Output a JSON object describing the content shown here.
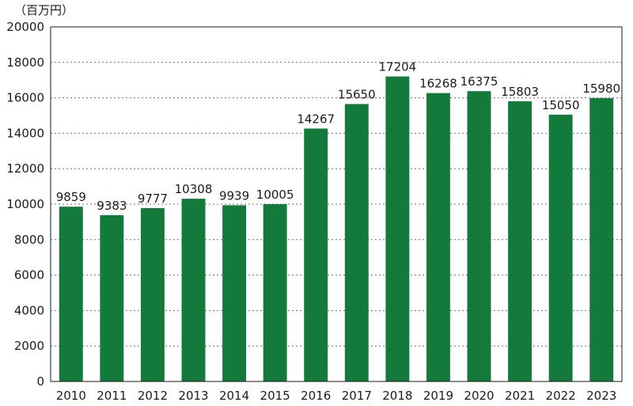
{
  "chart_data": {
    "type": "bar",
    "unit_label": "（百万円）",
    "categories": [
      "2010",
      "2011",
      "2012",
      "2013",
      "2014",
      "2015",
      "2016",
      "2017",
      "2018",
      "2019",
      "2020",
      "2021",
      "2022",
      "2023"
    ],
    "values": [
      9859,
      9383,
      9777,
      10308,
      9939,
      10005,
      14267,
      15650,
      17204,
      16268,
      16375,
      15803,
      15050,
      15980
    ],
    "ylim": [
      0,
      20000
    ],
    "yticks": [
      0,
      2000,
      4000,
      6000,
      8000,
      10000,
      12000,
      14000,
      16000,
      18000,
      20000
    ],
    "grid": true,
    "bar_color": "#137a3c",
    "title": "",
    "xlabel": "",
    "ylabel": ""
  }
}
